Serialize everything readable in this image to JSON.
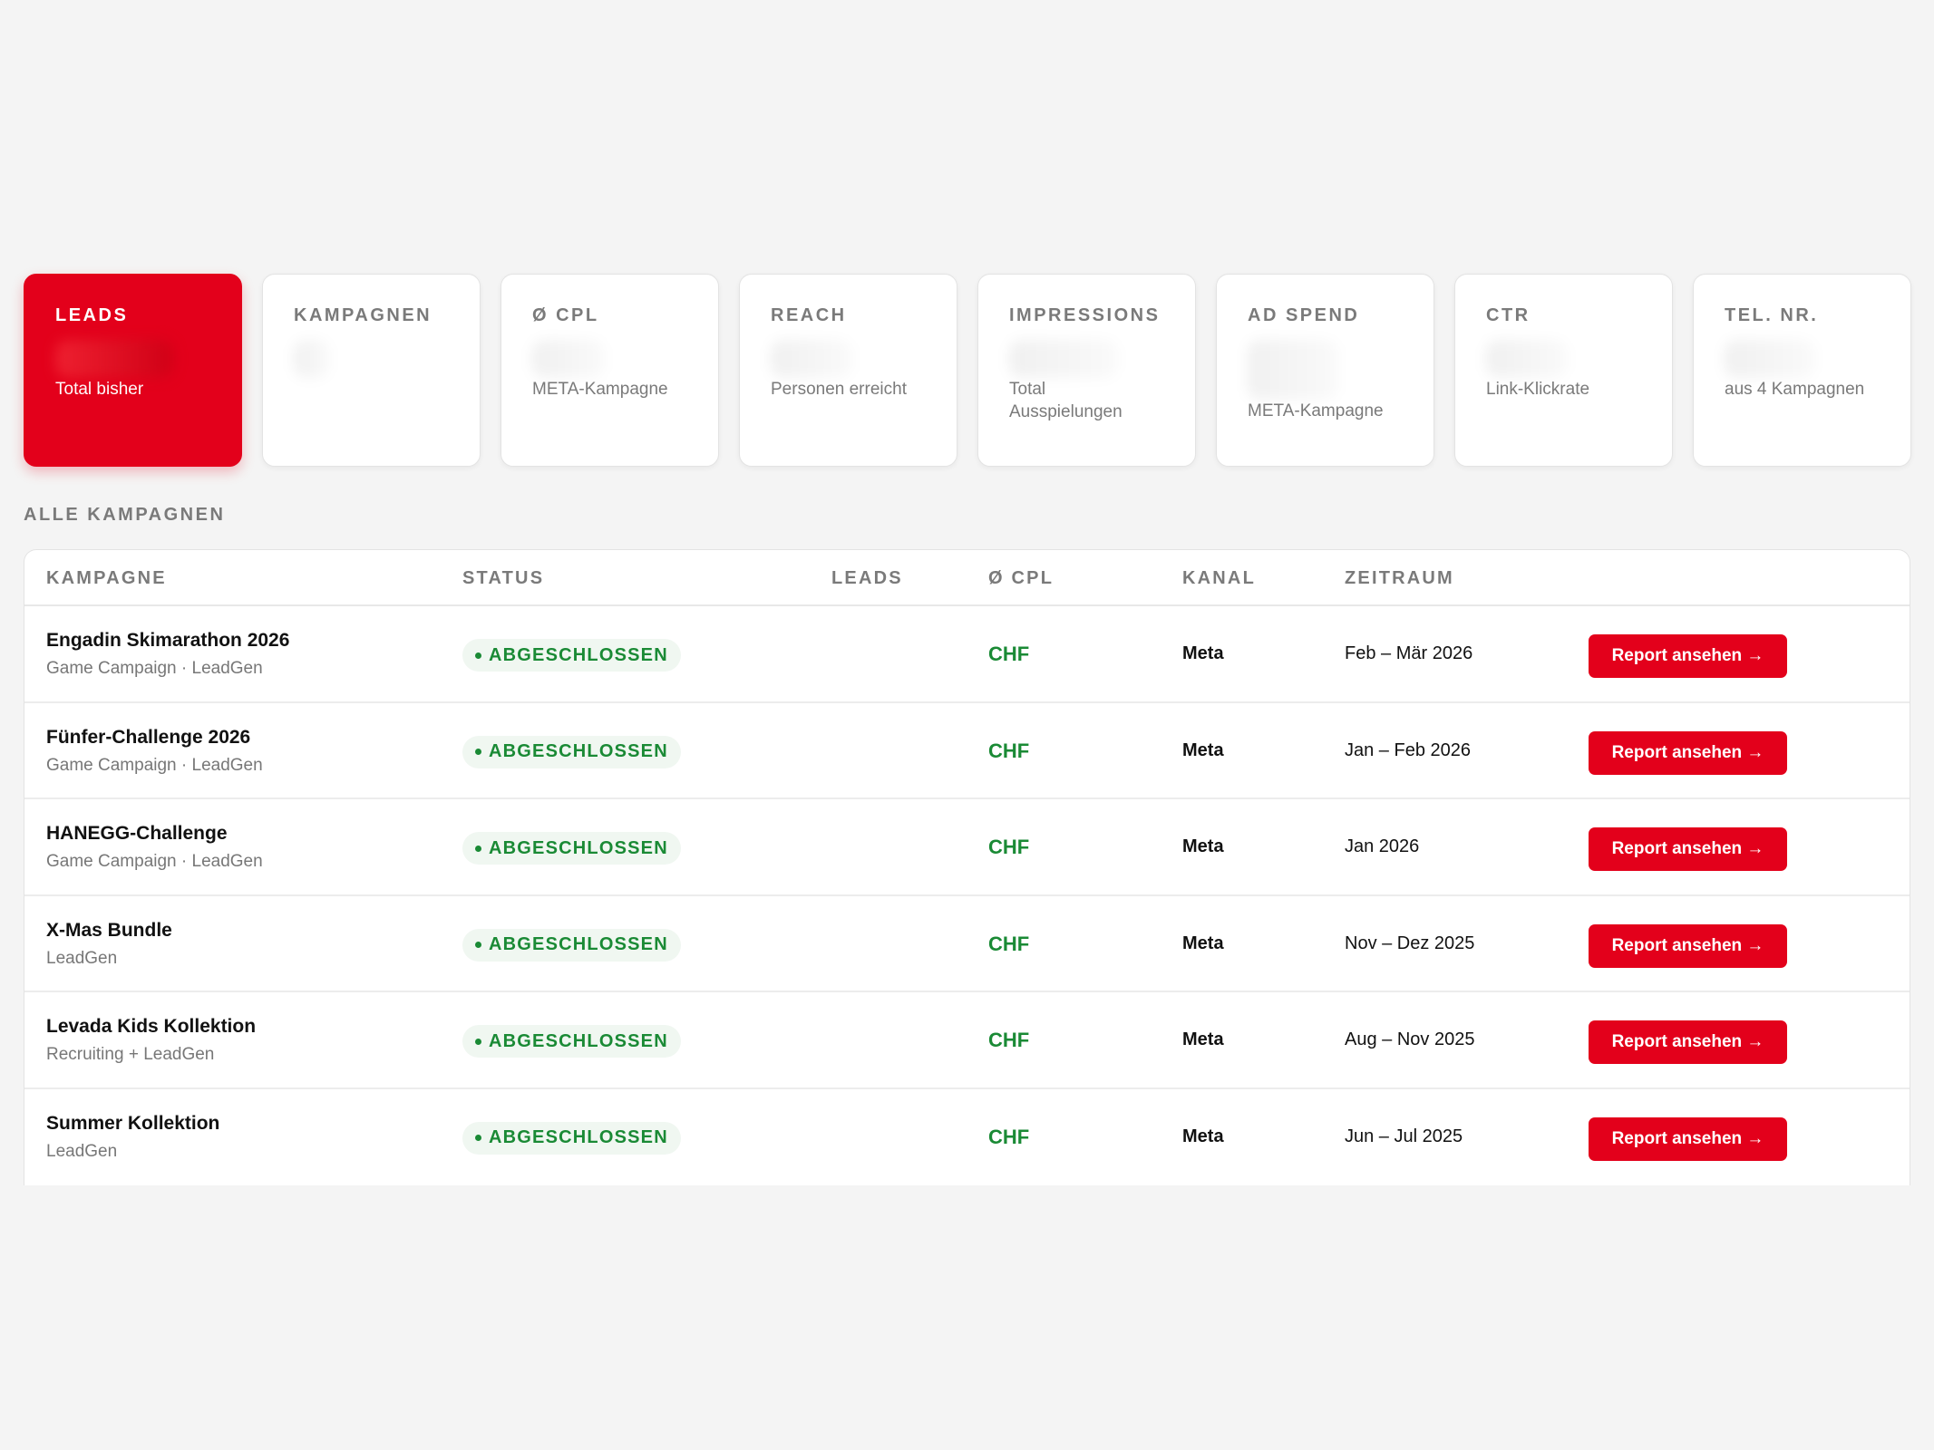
{
  "kpis": [
    {
      "label": "LEADS",
      "sub": "Total bisher"
    },
    {
      "label": "KAMPAGNEN",
      "sub": ""
    },
    {
      "label": "Ø CPL",
      "sub": "META-Kampagne"
    },
    {
      "label": "REACH",
      "sub": "Personen erreicht"
    },
    {
      "label": "IMPRESSIONS",
      "sub": "Total Ausspielungen"
    },
    {
      "label": "AD SPEND",
      "sub": "META-Kampagne"
    },
    {
      "label": "CTR",
      "sub": "Link-Klickrate"
    },
    {
      "label": "TEL. NR.",
      "sub": "aus 4 Kampagnen"
    }
  ],
  "section_title": "ALLE KAMPAGNEN",
  "table": {
    "headers": {
      "kampagne": "KAMPAGNE",
      "status": "STATUS",
      "leads": "LEADS",
      "cpl": "Ø CPL",
      "kanal": "KANAL",
      "zeitraum": "ZEITRAUM"
    },
    "rows": [
      {
        "title": "Engadin Skimarathon 2026",
        "type": "Game Campaign · LeadGen",
        "status": "ABGESCHLOSSEN",
        "leads": "",
        "cpl": "CHF",
        "kanal": "Meta",
        "zeitraum": "Feb – Mär 2026",
        "action": "Report ansehen →"
      },
      {
        "title": "Fünfer-Challenge 2026",
        "type": "Game Campaign · LeadGen",
        "status": "ABGESCHLOSSEN",
        "leads": "",
        "cpl": "CHF",
        "kanal": "Meta",
        "zeitraum": "Jan – Feb 2026",
        "action": "Report ansehen →"
      },
      {
        "title": "HANEGG-Challenge",
        "type": "Game Campaign · LeadGen",
        "status": "ABGESCHLOSSEN",
        "leads": "",
        "cpl": "CHF",
        "kanal": "Meta",
        "zeitraum": "Jan 2026",
        "action": "Report ansehen →"
      },
      {
        "title": "X-Mas Bundle",
        "type": "LeadGen",
        "status": "ABGESCHLOSSEN",
        "leads": "",
        "cpl": "CHF",
        "kanal": "Meta",
        "zeitraum": "Nov – Dez 2025",
        "action": "Report ansehen →"
      },
      {
        "title": "Levada Kids Kollektion",
        "type": "Recruiting + LeadGen",
        "status": "ABGESCHLOSSEN",
        "leads": "",
        "cpl": "CHF",
        "kanal": "Meta",
        "zeitraum": "Aug – Nov 2025",
        "action": "Report ansehen →"
      },
      {
        "title": "Summer Kollektion",
        "type": "LeadGen",
        "status": "ABGESCHLOSSEN",
        "leads": "",
        "cpl": "CHF",
        "kanal": "Meta",
        "zeitraum": "Jun – Jul 2025",
        "action": "Report ansehen →"
      }
    ]
  },
  "colors": {
    "accent": "#e3001b",
    "status_green": "#1a8a35",
    "badge_bg": "#f0f7f1",
    "muted_text": "#7a7a7a"
  }
}
